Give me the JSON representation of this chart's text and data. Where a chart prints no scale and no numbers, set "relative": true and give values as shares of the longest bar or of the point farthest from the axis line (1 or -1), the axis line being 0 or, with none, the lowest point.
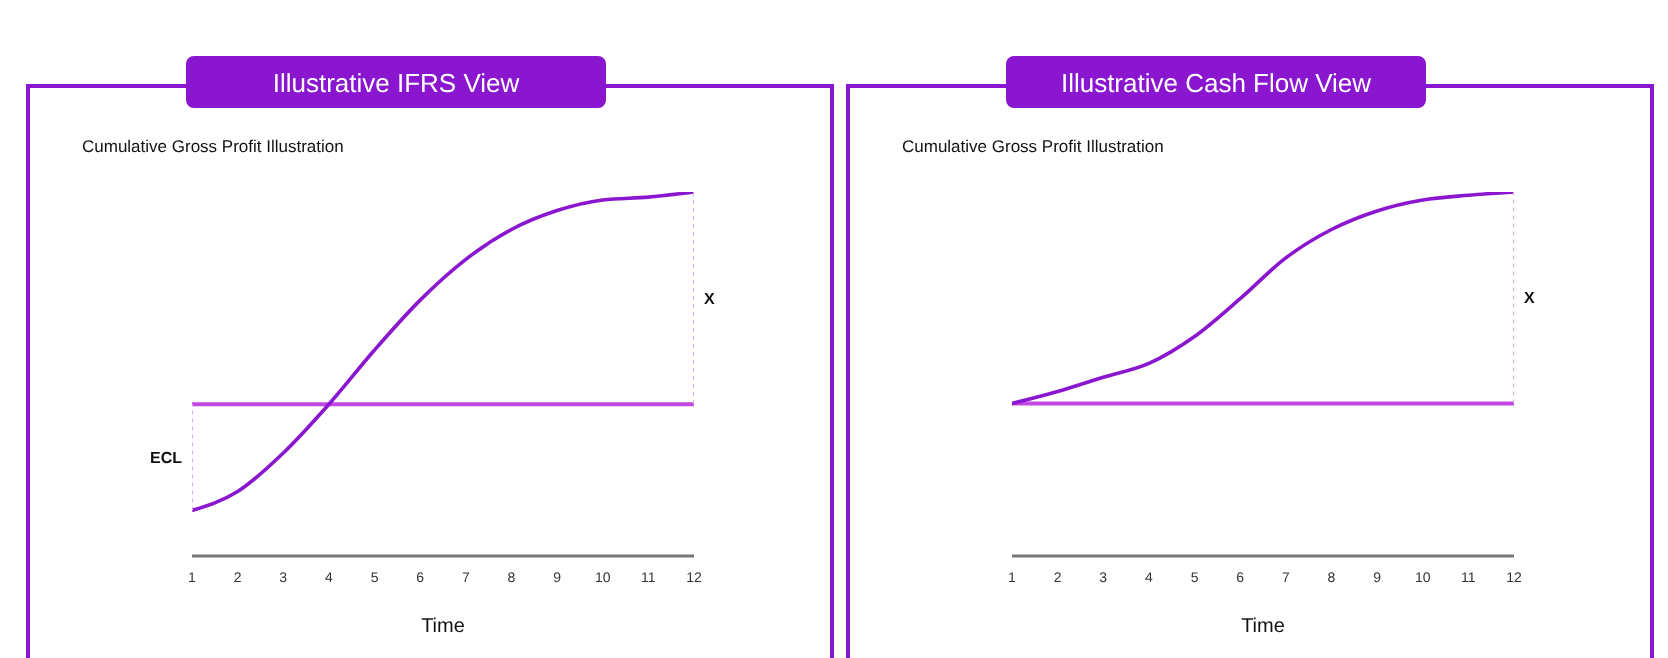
{
  "chart_data": [
    {
      "type": "line",
      "title": "Illustrative IFRS View",
      "subtitle": "Cumulative Gross Profit Illustration",
      "xlabel": "Time",
      "relative": true,
      "xlim": [
        1,
        12
      ],
      "xticks": [
        1,
        2,
        3,
        4,
        5,
        6,
        7,
        8,
        9,
        10,
        11,
        12
      ],
      "grid": false,
      "legend": false,
      "marker": "none",
      "series": [
        {
          "color": "#8a16d0",
          "x": [
            1,
            2,
            3,
            4,
            5,
            6,
            7,
            8,
            9,
            10,
            11,
            12
          ],
          "values": [
            0.125,
            0.177,
            0.283,
            0.417,
            0.566,
            0.703,
            0.815,
            0.897,
            0.949,
            0.978,
            0.986,
            1
          ]
        },
        {
          "name": "X",
          "color": "#dca8f0",
          "line_style": "dotted",
          "x": [
            12,
            12
          ],
          "values": [
            0.417,
            1
          ]
        },
        {
          "name": "ECL",
          "color": "#dca8f0",
          "line_style": "dotted",
          "x": [
            1,
            1
          ],
          "values": [
            0.125,
            0.417
          ]
        }
      ],
      "ref_lines": [
        {
          "axis": "y",
          "value": 0.417,
          "color": "#c048e0"
        }
      ]
    },
    {
      "type": "line",
      "title": "Illustrative Cash Flow View",
      "subtitle": "Cumulative Gross Profit Illustration",
      "xlabel": "Time",
      "relative": true,
      "xlim": [
        1,
        12
      ],
      "xticks": [
        1,
        2,
        3,
        4,
        5,
        6,
        7,
        8,
        9,
        10,
        11,
        12
      ],
      "grid": false,
      "legend": false,
      "marker": "none",
      "series": [
        {
          "color": "#8a16d0",
          "x": [
            1,
            2,
            3,
            4,
            5,
            6,
            7,
            8,
            9,
            10,
            11,
            12
          ],
          "values": [
            0.419,
            0.452,
            0.491,
            0.529,
            0.603,
            0.707,
            0.819,
            0.897,
            0.948,
            0.978,
            0.991,
            1
          ]
        },
        {
          "name": "X",
          "color": "#dca8f0",
          "line_style": "dotted",
          "x": [
            12,
            12
          ],
          "values": [
            0.419,
            1
          ]
        }
      ],
      "ref_lines": [
        {
          "axis": "y",
          "value": 0.419,
          "color": "#c048e0"
        }
      ]
    }
  ]
}
